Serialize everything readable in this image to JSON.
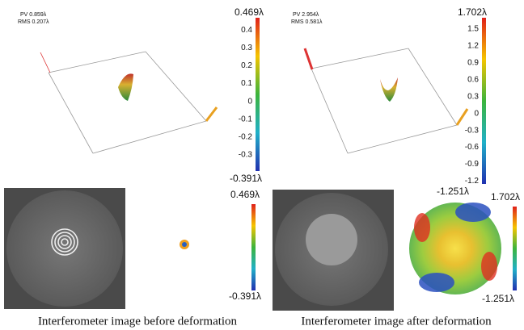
{
  "panels": [
    {
      "pv": "PV 0.859λ",
      "rms": "RMS 0.207λ",
      "colorbar": {
        "max": "0.469λ",
        "min": "-0.391λ",
        "ticks": [
          "0.4",
          "0.3",
          "0.2",
          "0.1",
          "0",
          "-0.1",
          "-0.2",
          "-0.3"
        ]
      },
      "small_colorbar": {
        "max": "0.469λ",
        "min": "-0.391λ"
      },
      "caption": "Interferometer   image before  deformation"
    },
    {
      "pv": "PV 2.954λ",
      "rms": "RMS 0.581λ",
      "colorbar": {
        "max": "1.702λ",
        "min": "-1.251λ",
        "ticks": [
          "1.5",
          "1.2",
          "0.9",
          "0.6",
          "0.3",
          "0",
          "-0.3",
          "-0.6",
          "-0.9",
          "-1.2"
        ]
      },
      "small_colorbar": {
        "max": "1.702λ",
        "min": "-1.251λ"
      },
      "caption": "Interferometer   image after  deformation"
    }
  ]
}
